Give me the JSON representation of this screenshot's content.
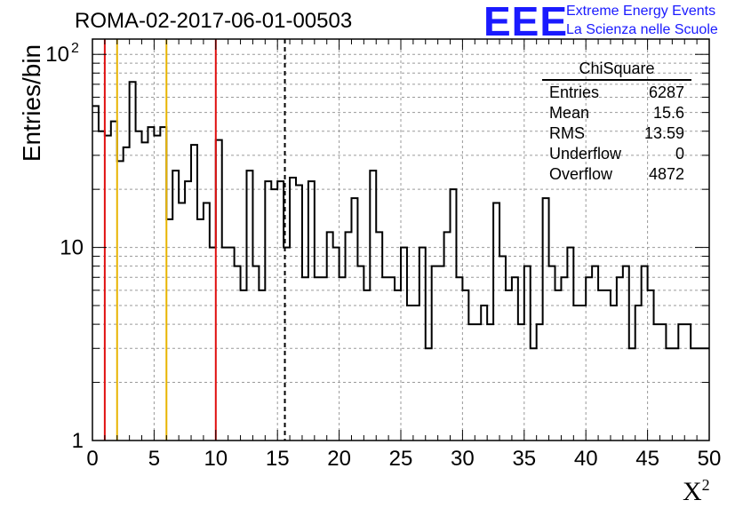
{
  "header": {
    "title": "ROMA-02-2017-06-01-00503",
    "logo_text": "EEE",
    "logo_line1": "Extreme Energy Events",
    "logo_line2": "La Scienza nelle Scuole"
  },
  "stats": {
    "title": "ChiSquare",
    "rows": [
      {
        "label": "Entries",
        "value": "6287"
      },
      {
        "label": "Mean",
        "value": "15.6"
      },
      {
        "label": "RMS",
        "value": "13.59"
      },
      {
        "label": "Underflow",
        "value": "0"
      },
      {
        "label": "Overflow",
        "value": "4872"
      }
    ]
  },
  "colors": {
    "red_line": "#e01010",
    "yellow_line": "#e8b400",
    "logo_blue": "#1a1aff"
  },
  "chart_data": {
    "type": "histogram",
    "xlabel": "X",
    "xlabel_superscript": "2",
    "ylabel": "Entries/bin",
    "xlim": [
      0,
      50
    ],
    "ylim": [
      1,
      120
    ],
    "yscale": "log",
    "grid": true,
    "bin_width": 0.5,
    "x_ticks": [
      "0",
      "5",
      "10",
      "15",
      "20",
      "25",
      "30",
      "35",
      "40",
      "45",
      "50"
    ],
    "y_ticks": [
      {
        "value": 1,
        "label": "1"
      },
      {
        "value": 10,
        "label": "10"
      },
      {
        "value": 100,
        "label": "10",
        "sup": "2"
      }
    ],
    "bin_counts": [
      54,
      40,
      38,
      45,
      28,
      33,
      72,
      40,
      35,
      42,
      38,
      42,
      14,
      25,
      17,
      22,
      34,
      14,
      17,
      10,
      36,
      10,
      10,
      8,
      6,
      25,
      8,
      6,
      22,
      20,
      22,
      10,
      23,
      21,
      7,
      22,
      7,
      7,
      12,
      10,
      7,
      12,
      18,
      8,
      6,
      25,
      12,
      7,
      7,
      6,
      10,
      5,
      5,
      10,
      3,
      8,
      8,
      12,
      20,
      7,
      6,
      4,
      4,
      5,
      4,
      17,
      9,
      6,
      7,
      4,
      8,
      3,
      4,
      18,
      8,
      6,
      7,
      10,
      5,
      5,
      7,
      8,
      6,
      6,
      5,
      7,
      8,
      3,
      5,
      8,
      6,
      4,
      4,
      3,
      3,
      4,
      4,
      3,
      3,
      3
    ],
    "vertical_lines": [
      {
        "x": 1,
        "color": "red",
        "style": "solid"
      },
      {
        "x": 2,
        "color": "yellow",
        "style": "solid"
      },
      {
        "x": 6,
        "color": "yellow",
        "style": "solid"
      },
      {
        "x": 10,
        "color": "red",
        "style": "solid"
      },
      {
        "x": 15.6,
        "color": "black",
        "style": "dashed"
      }
    ]
  }
}
